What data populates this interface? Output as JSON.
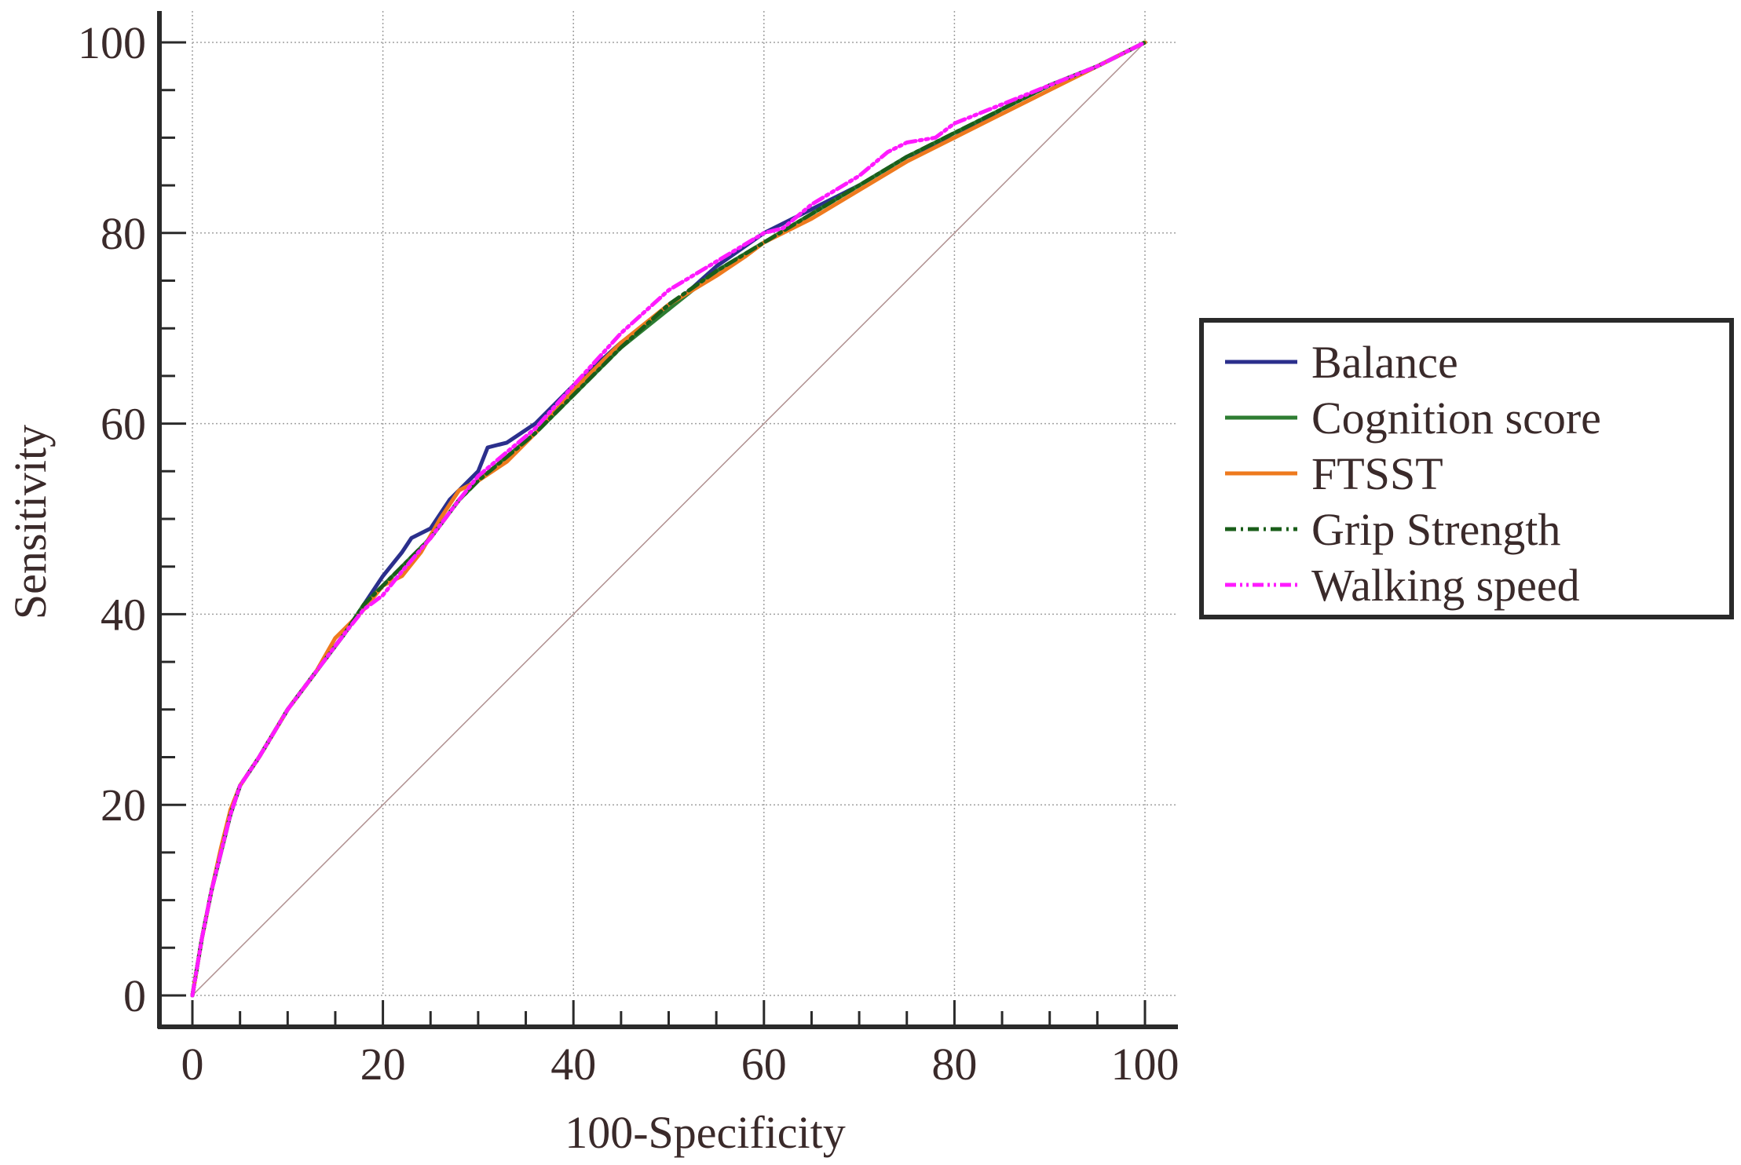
{
  "chart_data": {
    "type": "line",
    "xlabel": "100-Specificity",
    "ylabel": "Sensitivity",
    "xlim": [
      0,
      100
    ],
    "ylim": [
      0,
      100
    ],
    "xticks": [
      "0",
      "20",
      "40",
      "60",
      "80",
      "100"
    ],
    "yticks": [
      "0",
      "20",
      "40",
      "60",
      "80",
      "100"
    ],
    "grid": true,
    "legend_position": "right",
    "reference_line": {
      "x": [
        0,
        100
      ],
      "y": [
        0,
        100
      ],
      "color": "#b09090"
    },
    "series": [
      {
        "name": "Balance",
        "color": "#2b2f8c",
        "dash": "solid",
        "x": [
          0,
          1,
          2,
          3,
          4,
          5,
          7,
          10,
          13,
          16,
          18,
          20,
          22,
          23,
          25,
          27,
          30,
          31,
          33,
          36,
          40,
          45,
          50,
          55,
          60,
          65,
          70,
          75,
          80,
          85,
          90,
          95,
          100
        ],
        "y": [
          0,
          6,
          11,
          15,
          19,
          22,
          25,
          30,
          34,
          38,
          41,
          44,
          46.5,
          48,
          49,
          52,
          55,
          57.5,
          58,
          60,
          64,
          68.5,
          72,
          76.5,
          80,
          82.5,
          85,
          88,
          90,
          93,
          95.5,
          97.5,
          100
        ]
      },
      {
        "name": "Cognition score",
        "color": "#2e7d32",
        "dash": "solid",
        "x": [
          0,
          1,
          2,
          3,
          4,
          5,
          7,
          10,
          13,
          16,
          18,
          20,
          22,
          25,
          28,
          30,
          33,
          36,
          40,
          45,
          50,
          55,
          60,
          65,
          70,
          75,
          80,
          85,
          90,
          95,
          100
        ],
        "y": [
          0,
          6,
          11,
          15,
          19,
          22,
          25,
          30,
          34,
          38,
          41,
          43,
          45,
          48,
          52,
          54,
          56.5,
          59,
          63,
          68,
          72,
          76,
          79,
          82,
          85,
          88,
          90.5,
          93,
          95.5,
          97.5,
          100
        ]
      },
      {
        "name": "FTSST",
        "color": "#ee7a1e",
        "dash": "solid",
        "x": [
          0,
          1,
          2,
          3,
          4,
          5,
          7,
          10,
          13,
          15,
          16,
          18,
          20,
          22,
          24,
          26,
          28,
          30,
          33,
          36,
          40,
          45,
          50,
          55,
          58,
          60,
          65,
          70,
          75,
          80,
          85,
          90,
          95,
          100
        ],
        "y": [
          0,
          6,
          11,
          15.5,
          19.5,
          22,
          25,
          30,
          34,
          37.5,
          38.5,
          40.5,
          43,
          44,
          46.5,
          50,
          53,
          54,
          56,
          59,
          63.5,
          68.5,
          72.5,
          75.5,
          77.5,
          79,
          81.5,
          84.5,
          87.5,
          90,
          92.5,
          95,
          97.5,
          100
        ]
      },
      {
        "name": "Grip Strength",
        "color": "#1a5e1a",
        "dash": "dashdot",
        "x": [
          0,
          1,
          2,
          3,
          4,
          5,
          7,
          10,
          13,
          16,
          18,
          20,
          22,
          25,
          28,
          30,
          33,
          36,
          40,
          45,
          50,
          55,
          60,
          65,
          70,
          75,
          80,
          85,
          90,
          95,
          100
        ],
        "y": [
          0,
          6,
          11,
          15,
          19,
          22,
          25,
          30,
          34,
          38,
          41,
          43,
          45,
          48,
          52,
          54,
          56.5,
          59,
          63,
          68,
          72.5,
          76,
          79,
          82,
          85,
          88,
          90.5,
          93,
          95.5,
          97.5,
          100
        ]
      },
      {
        "name": "Walking speed",
        "color": "#ff1aff",
        "dash": "dashdotdot",
        "x": [
          0,
          1,
          2,
          3,
          4,
          5,
          7,
          10,
          13,
          16,
          18,
          20,
          22,
          25,
          28,
          30,
          33,
          36,
          40,
          45,
          50,
          55,
          60,
          62,
          65,
          70,
          73,
          75,
          78,
          80,
          85,
          90,
          95,
          100
        ],
        "y": [
          0,
          6,
          11,
          15,
          19,
          22,
          25,
          30,
          34,
          38,
          40.5,
          42,
          44.5,
          48,
          52,
          54.5,
          57,
          59.5,
          64,
          69.5,
          74,
          77,
          80,
          80.5,
          83,
          86,
          88.5,
          89.5,
          90,
          91.5,
          93.5,
          95.5,
          97.5,
          100
        ]
      }
    ]
  }
}
